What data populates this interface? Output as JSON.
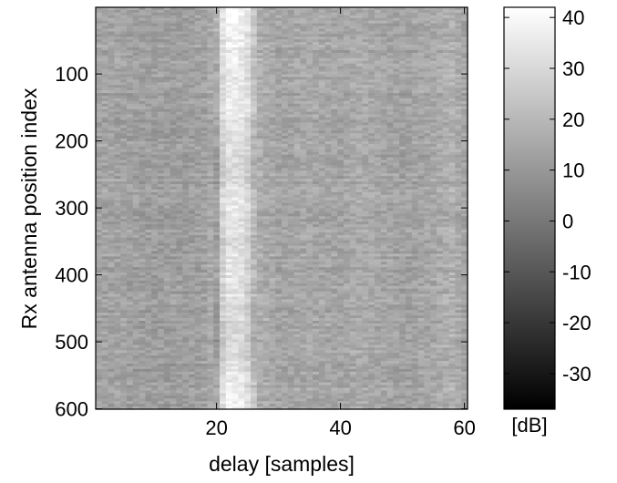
{
  "chart_data": {
    "type": "heatmap",
    "title": "",
    "xlabel": "delay [samples]",
    "ylabel": "Rx antenna position index",
    "xlim": [
      0.5,
      60.5
    ],
    "ylim": [
      600.5,
      0.5
    ],
    "xticks": [
      20,
      40,
      60
    ],
    "yticks": [
      100,
      200,
      300,
      400,
      500,
      600
    ],
    "colormap": "gray",
    "colorbar": {
      "label": "[dB]",
      "range": [
        -37,
        42
      ],
      "ticks": [
        40,
        30,
        20,
        10,
        0,
        -10,
        -20,
        -30
      ]
    },
    "delay_profile": {
      "delay": [
        1,
        5,
        10,
        15,
        18,
        20,
        21,
        22,
        23,
        24,
        25,
        26,
        27,
        30,
        35,
        40,
        43,
        45,
        50,
        55,
        58,
        60
      ],
      "level_db": [
        14,
        13,
        12,
        12,
        13,
        18,
        33,
        38,
        38,
        37,
        33,
        25,
        17,
        14,
        15,
        14,
        16,
        15,
        13,
        15,
        18,
        14
      ]
    },
    "position_profile_peak": {
      "position": [
        1,
        50,
        100,
        150,
        200,
        250,
        300,
        350,
        400,
        450,
        500,
        550,
        600
      ],
      "level_db": [
        40,
        38,
        34,
        38,
        33,
        30,
        37,
        31,
        35,
        32,
        29,
        36,
        38
      ]
    }
  }
}
